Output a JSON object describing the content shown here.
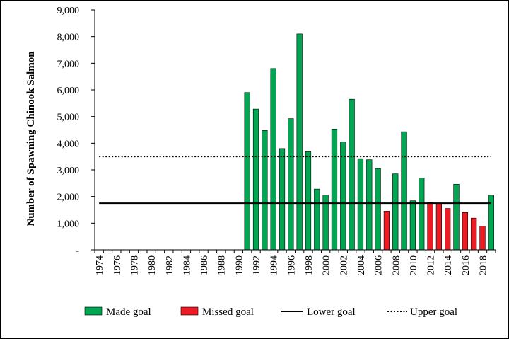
{
  "chart_data": {
    "type": "bar",
    "ylabel": "Number of Spawning Chinook Salmon",
    "xlabel": "",
    "ylim": [
      0,
      9000
    ],
    "yticks": [
      0,
      1000,
      2000,
      3000,
      4000,
      5000,
      6000,
      7000,
      8000,
      9000
    ],
    "ytick_labels": [
      "-",
      "1,000",
      "2,000",
      "3,000",
      "4,000",
      "5,000",
      "6,000",
      "7,000",
      "8,000",
      "9,000"
    ],
    "xtick_labels": [
      "1974",
      "1976",
      "1978",
      "1980",
      "1982",
      "1984",
      "1986",
      "1988",
      "1990",
      "1992",
      "1994",
      "1996",
      "1998",
      "2000",
      "2002",
      "2004",
      "2006",
      "2008",
      "2010",
      "2012",
      "2014",
      "2016",
      "2018"
    ],
    "x_first_year": 1974,
    "x_last_year": 2019,
    "years": [
      1991,
      1992,
      1993,
      1994,
      1995,
      1996,
      1997,
      1998,
      1999,
      2000,
      2001,
      2002,
      2003,
      2004,
      2005,
      2006,
      2007,
      2008,
      2009,
      2010,
      2011,
      2012,
      2013,
      2014,
      2015,
      2016,
      2017,
      2018,
      2019
    ],
    "values": [
      5900,
      5280,
      4480,
      6800,
      3800,
      4920,
      8100,
      3680,
      2280,
      2050,
      4530,
      4050,
      5650,
      3420,
      3380,
      3050,
      1450,
      2850,
      4430,
      1840,
      2700,
      1770,
      1760,
      1550,
      2460,
      1400,
      1190,
      890,
      2050
    ],
    "status": [
      "made",
      "made",
      "made",
      "made",
      "made",
      "made",
      "made",
      "made",
      "made",
      "made",
      "made",
      "made",
      "made",
      "made",
      "made",
      "made",
      "missed",
      "made",
      "made",
      "made",
      "made",
      "missed",
      "missed",
      "missed",
      "made",
      "missed",
      "missed",
      "missed",
      "made"
    ],
    "lower_goal": 1750,
    "upper_goal": 3500,
    "colors": {
      "made": "#00a651",
      "missed": "#ed1c24",
      "goal_line": "#000000"
    },
    "legend": {
      "placement": "bottom",
      "made_label": "Made goal",
      "missed_label": "Missed goal",
      "lower_label": "Lower goal",
      "upper_label": "Upper goal"
    }
  }
}
